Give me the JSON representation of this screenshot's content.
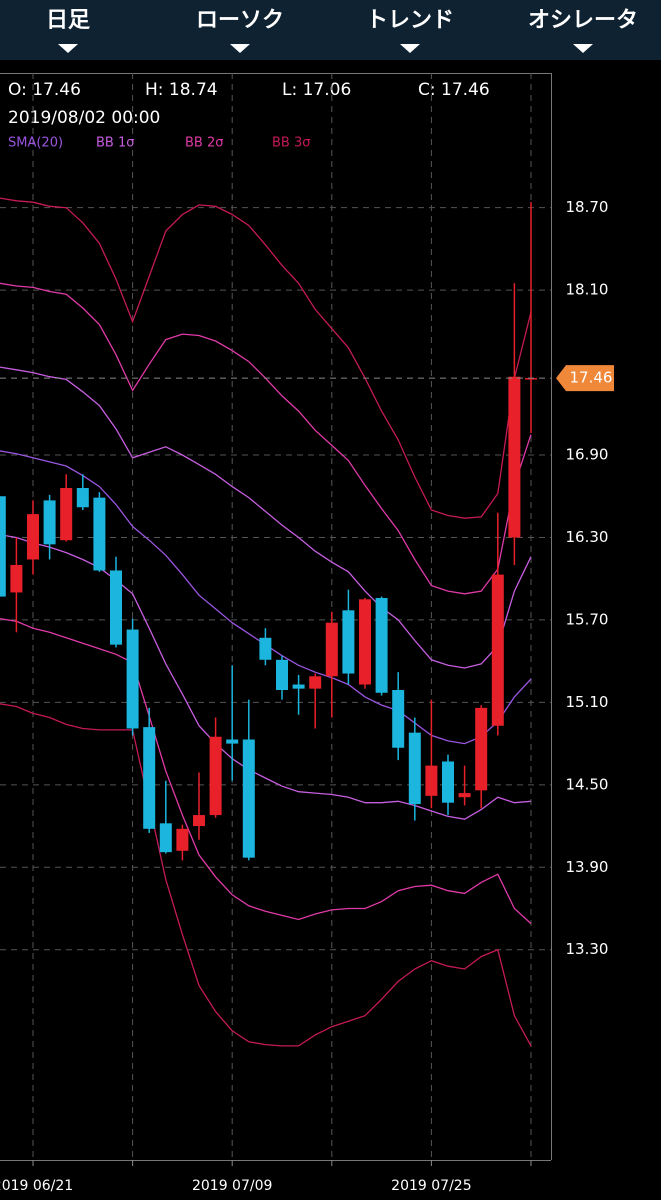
{
  "menu": [
    {
      "label": "日足"
    },
    {
      "label": "ローソク"
    },
    {
      "label": "トレンド"
    },
    {
      "label": "オシレータ"
    }
  ],
  "chart_data": {
    "type": "candlestick",
    "info": {
      "open": "O: 17.46",
      "high": "H: 18.74",
      "low": "L: 17.06",
      "close": "C: 17.46",
      "datetime": "2019/08/02 00:00"
    },
    "categories": [
      null,
      null,
      "2019 06/21",
      null,
      null,
      null,
      null,
      null,
      null,
      null,
      null,
      null,
      null,
      null,
      "2019 07/09",
      null,
      null,
      null,
      null,
      null,
      null,
      null,
      null,
      null,
      null,
      null,
      "2019 07/25",
      null,
      null,
      null,
      null,
      null,
      null
    ],
    "open": [
      16.6,
      15.9,
      16.14,
      16.57,
      16.28,
      16.66,
      16.59,
      16.06,
      15.63,
      14.92,
      14.22,
      14.02,
      14.2,
      14.28,
      14.83,
      14.83,
      15.57,
      15.41,
      15.23,
      15.2,
      15.29,
      15.77,
      15.23,
      15.86,
      15.19,
      14.88,
      14.42,
      14.67,
      14.41,
      14.46,
      14.93,
      16.3,
      17.46
    ],
    "high": [
      16.6,
      16.3,
      16.57,
      16.61,
      16.76,
      16.76,
      16.63,
      16.16,
      15.71,
      15.06,
      14.53,
      14.21,
      14.59,
      14.99,
      15.37,
      15.12,
      15.64,
      15.44,
      15.3,
      15.31,
      15.76,
      15.92,
      15.86,
      15.87,
      15.32,
      14.99,
      15.12,
      14.72,
      14.64,
      15.08,
      16.48,
      18.15,
      18.74
    ],
    "low": [
      15.87,
      15.61,
      16.03,
      16.14,
      16.27,
      16.5,
      16.05,
      15.5,
      14.86,
      14.15,
      14.0,
      13.95,
      14.1,
      14.26,
      14.53,
      13.95,
      15.37,
      15.12,
      15.01,
      14.91,
      14.99,
      15.23,
      15.2,
      15.15,
      14.68,
      14.24,
      14.33,
      14.28,
      14.35,
      14.33,
      14.86,
      16.1,
      17.06
    ],
    "close": [
      15.87,
      16.1,
      16.47,
      16.25,
      16.66,
      16.52,
      16.06,
      15.52,
      14.91,
      14.18,
      14.01,
      14.18,
      14.28,
      14.85,
      14.8,
      13.97,
      15.41,
      15.19,
      15.2,
      15.29,
      15.68,
      15.31,
      15.85,
      15.17,
      14.77,
      14.36,
      14.64,
      14.37,
      14.44,
      15.06,
      16.03,
      17.47,
      17.46
    ],
    "up_color": "#e8202a",
    "down_color": "#1bb5dd",
    "overlays": [
      {
        "name": "SMA(20)",
        "color": "#9a55e0",
        "values": [
          16.93,
          16.91,
          16.88,
          16.85,
          16.82,
          16.75,
          16.67,
          16.54,
          16.38,
          16.28,
          16.17,
          16.03,
          15.88,
          15.78,
          15.68,
          15.6,
          15.52,
          15.44,
          15.37,
          15.32,
          15.28,
          15.23,
          15.14,
          15.08,
          15.04,
          14.95,
          14.86,
          14.82,
          14.8,
          14.85,
          14.96,
          15.14,
          15.27
        ]
      },
      {
        "name": "BB 1σ",
        "color": "#c65ee0",
        "upper": [
          17.54,
          17.52,
          17.5,
          17.47,
          17.45,
          17.36,
          17.26,
          17.09,
          16.88,
          16.92,
          16.96,
          16.9,
          16.83,
          16.76,
          16.67,
          16.59,
          16.49,
          16.39,
          16.3,
          16.2,
          16.12,
          16.05,
          15.91,
          15.79,
          15.7,
          15.55,
          15.41,
          15.37,
          15.35,
          15.38,
          15.51,
          15.91,
          16.16
        ],
        "lower": [
          16.32,
          16.3,
          16.26,
          16.23,
          16.19,
          16.14,
          16.08,
          15.99,
          15.89,
          15.64,
          15.38,
          15.16,
          14.93,
          14.8,
          14.69,
          14.61,
          14.55,
          14.49,
          14.45,
          14.44,
          14.43,
          14.41,
          14.37,
          14.37,
          14.38,
          14.35,
          14.31,
          14.27,
          14.25,
          14.32,
          14.41,
          14.37,
          14.38
        ]
      },
      {
        "name": "BB 2σ",
        "color": "#e03aa8",
        "upper": [
          18.15,
          18.13,
          18.12,
          18.09,
          18.07,
          17.97,
          17.85,
          17.63,
          17.37,
          17.56,
          17.74,
          17.78,
          17.77,
          17.73,
          17.66,
          17.58,
          17.46,
          17.33,
          17.22,
          17.08,
          16.97,
          16.86,
          16.68,
          16.51,
          16.35,
          16.14,
          15.95,
          15.91,
          15.89,
          15.91,
          16.07,
          16.68,
          17.05
        ],
        "lower": [
          15.71,
          15.69,
          15.64,
          15.61,
          15.57,
          15.53,
          15.49,
          15.45,
          15.39,
          15.0,
          14.6,
          14.28,
          13.99,
          13.83,
          13.7,
          13.62,
          13.58,
          13.55,
          13.52,
          13.56,
          13.59,
          13.6,
          13.6,
          13.65,
          13.73,
          13.76,
          13.77,
          13.73,
          13.71,
          13.79,
          13.85,
          13.6,
          13.49
        ]
      },
      {
        "name": "BB 3σ",
        "color": "#c41a58",
        "upper": [
          18.77,
          18.75,
          18.74,
          18.71,
          18.7,
          18.59,
          18.44,
          18.18,
          17.87,
          18.2,
          18.53,
          18.65,
          18.72,
          18.71,
          18.65,
          18.57,
          18.43,
          18.28,
          18.15,
          17.96,
          17.82,
          17.68,
          17.46,
          17.22,
          17.01,
          16.74,
          16.5,
          16.46,
          16.44,
          16.45,
          16.62,
          17.46,
          17.94
        ],
        "lower": [
          15.09,
          15.07,
          15.02,
          14.99,
          14.94,
          14.91,
          14.9,
          14.9,
          14.9,
          14.36,
          13.81,
          13.41,
          13.04,
          12.85,
          12.71,
          12.63,
          12.61,
          12.6,
          12.6,
          12.68,
          12.74,
          12.78,
          12.82,
          12.94,
          13.07,
          13.16,
          13.22,
          13.18,
          13.16,
          13.25,
          13.3,
          12.82,
          12.6
        ]
      }
    ],
    "last_price": 17.46,
    "last_price_color": "#f0883a",
    "ylim": [
      11.77,
      19.68
    ],
    "yticks": [
      {
        "value": 18.7,
        "label": "18.70"
      },
      {
        "value": 18.1,
        "label": "18.10"
      },
      {
        "value": 16.9,
        "label": "16.90"
      },
      {
        "value": 16.3,
        "label": "16.30"
      },
      {
        "value": 15.7,
        "label": "15.70"
      },
      {
        "value": 15.1,
        "label": "15.10"
      },
      {
        "value": 14.5,
        "label": "14.50"
      },
      {
        "value": 13.9,
        "label": "13.90"
      },
      {
        "value": 13.3,
        "label": "13.30"
      }
    ],
    "grid": true
  }
}
